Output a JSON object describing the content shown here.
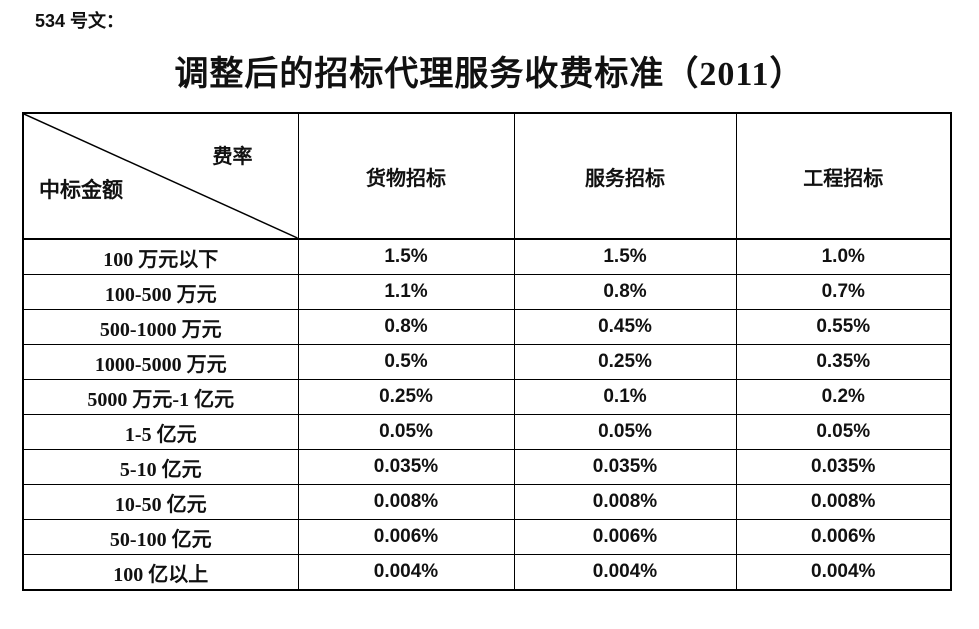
{
  "page": {
    "doc_label": "534 号文：",
    "title": "调整后的招标代理服务收费标准（2011）"
  },
  "colors": {
    "background": "#ffffff",
    "text": "#111111",
    "border": "#000000"
  },
  "table": {
    "corner": {
      "top_right_label": "费率",
      "bottom_left_label": "中标金额"
    },
    "columns": [
      "货物招标",
      "服务招标",
      "工程招标"
    ],
    "rows": [
      {
        "label": "100 万元以下",
        "values": [
          "1.5%",
          "1.5%",
          "1.0%"
        ]
      },
      {
        "label": "100-500 万元",
        "values": [
          "1.1%",
          "0.8%",
          "0.7%"
        ]
      },
      {
        "label": "500-1000 万元",
        "values": [
          "0.8%",
          "0.45%",
          "0.55%"
        ]
      },
      {
        "label": "1000-5000 万元",
        "values": [
          "0.5%",
          "0.25%",
          "0.35%"
        ]
      },
      {
        "label": "5000 万元-1 亿元",
        "values": [
          "0.25%",
          "0.1%",
          "0.2%"
        ]
      },
      {
        "label": "1-5 亿元",
        "values": [
          "0.05%",
          "0.05%",
          "0.05%"
        ]
      },
      {
        "label": "5-10 亿元",
        "values": [
          "0.035%",
          "0.035%",
          "0.035%"
        ]
      },
      {
        "label": "10-50 亿元",
        "values": [
          "0.008%",
          "0.008%",
          "0.008%"
        ]
      },
      {
        "label": "50-100 亿元",
        "values": [
          "0.006%",
          "0.006%",
          "0.006%"
        ]
      },
      {
        "label": "100 亿以上",
        "values": [
          "0.004%",
          "0.004%",
          "0.004%"
        ]
      }
    ]
  }
}
